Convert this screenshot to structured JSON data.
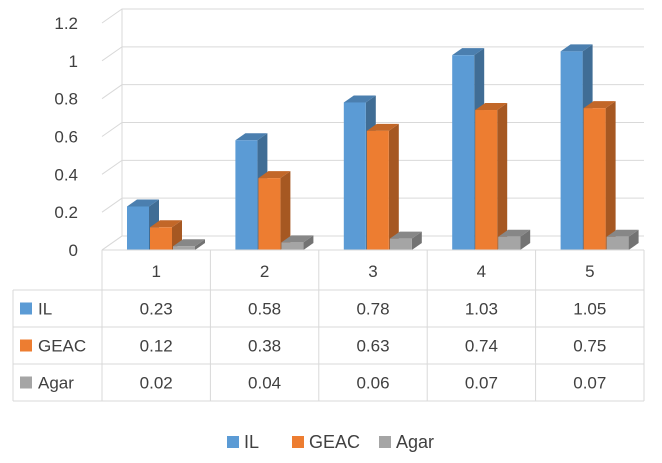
{
  "chart_data": {
    "type": "bar",
    "title": "",
    "xlabel": "",
    "ylabel": "",
    "categories": [
      "1",
      "2",
      "3",
      "4",
      "5"
    ],
    "series": [
      {
        "name": "IL",
        "values": [
          0.23,
          0.58,
          0.78,
          1.03,
          1.05
        ],
        "color": "#5B9BD5"
      },
      {
        "name": "GEAC",
        "values": [
          0.12,
          0.38,
          0.63,
          0.74,
          0.75
        ],
        "color": "#ED7D31"
      },
      {
        "name": "Agar",
        "values": [
          0.02,
          0.04,
          0.06,
          0.07,
          0.07
        ],
        "color": "#A5A5A5"
      }
    ],
    "table_values": [
      [
        "0.23",
        "0.58",
        "0.78",
        "1.03",
        "1.05"
      ],
      [
        "0.12",
        "0.38",
        "0.63",
        "0.74",
        "0.75"
      ],
      [
        "0.02",
        "0.04",
        "0.06",
        "0.07",
        "0.07"
      ]
    ],
    "yticks": [
      "0",
      "0.2",
      "0.4",
      "0.6",
      "0.8",
      "1",
      "1.2"
    ],
    "ylim": [
      0,
      1.2
    ],
    "grid": true,
    "legend_position": "bottom",
    "data_table": true,
    "style": "3d-clustered-column"
  }
}
